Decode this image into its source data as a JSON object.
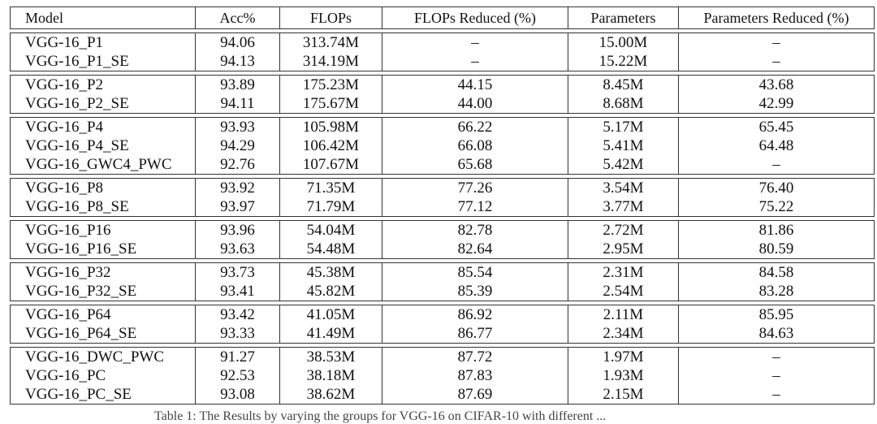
{
  "table": {
    "headers": [
      "Model",
      "Acc%",
      "FLOPs",
      "FLOPs Reduced (%)",
      "Parameters",
      "Parameters Reduced (%)"
    ],
    "groups": [
      [
        [
          "VGG-16_P1",
          "94.06",
          "313.74M",
          "–",
          "15.00M",
          "–"
        ],
        [
          "VGG-16_P1_SE",
          "94.13",
          "314.19M",
          "–",
          "15.22M",
          "–"
        ]
      ],
      [
        [
          "VGG-16_P2",
          "93.89",
          "175.23M",
          "44.15",
          "8.45M",
          "43.68"
        ],
        [
          "VGG-16_P2_SE",
          "94.11",
          "175.67M",
          "44.00",
          "8.68M",
          "42.99"
        ]
      ],
      [
        [
          "VGG-16_P4",
          "93.93",
          "105.98M",
          "66.22",
          "5.17M",
          "65.45"
        ],
        [
          "VGG-16_P4_SE",
          "94.29",
          "106.42M",
          "66.08",
          "5.41M",
          "64.48"
        ],
        [
          "VGG-16_GWC4_PWC",
          "92.76",
          "107.67M",
          "65.68",
          "5.42M",
          "–"
        ]
      ],
      [
        [
          "VGG-16_P8",
          "93.92",
          "71.35M",
          "77.26",
          "3.54M",
          "76.40"
        ],
        [
          "VGG-16_P8_SE",
          "93.97",
          "71.79M",
          "77.12",
          "3.77M",
          "75.22"
        ]
      ],
      [
        [
          "VGG-16_P16",
          "93.96",
          "54.04M",
          "82.78",
          "2.72M",
          "81.86"
        ],
        [
          "VGG-16_P16_SE",
          "93.63",
          "54.48M",
          "82.64",
          "2.95M",
          "80.59"
        ]
      ],
      [
        [
          "VGG-16_P32",
          "93.73",
          "45.38M",
          "85.54",
          "2.31M",
          "84.58"
        ],
        [
          "VGG-16_P32_SE",
          "93.41",
          "45.82M",
          "85.39",
          "2.54M",
          "83.28"
        ]
      ],
      [
        [
          "VGG-16_P64",
          "93.42",
          "41.05M",
          "86.92",
          "2.11M",
          "85.95"
        ],
        [
          "VGG-16_P64_SE",
          "93.33",
          "41.49M",
          "86.77",
          "2.34M",
          "84.63"
        ]
      ],
      [
        [
          "VGG-16_DWC_PWC",
          "91.27",
          "38.53M",
          "87.72",
          "1.97M",
          "–"
        ],
        [
          "VGG-16_PC",
          "92.53",
          "38.18M",
          "87.83",
          "1.93M",
          "–"
        ],
        [
          "VGG-16_PC_SE",
          "93.08",
          "38.62M",
          "87.69",
          "2.15M",
          "–"
        ]
      ]
    ]
  },
  "caption": "Table 1: The Results by varying the groups for VGG-16 on CIFAR-10 with different ..."
}
